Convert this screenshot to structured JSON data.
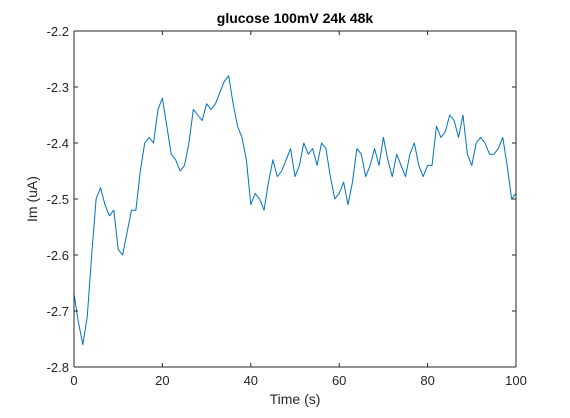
{
  "chart_data": {
    "type": "line",
    "title": "glucose 100mV 24k 48k",
    "xlabel": "Time (s)",
    "ylabel": "Im (uA)",
    "xlim": [
      0,
      100
    ],
    "ylim": [
      -2.8,
      -2.2
    ],
    "xticks": [
      0,
      20,
      40,
      60,
      80,
      100
    ],
    "yticks": [
      -2.8,
      -2.7,
      -2.6,
      -2.5,
      -2.4,
      -2.3,
      -2.2
    ],
    "xtick_labels": [
      "0",
      "20",
      "40",
      "60",
      "80",
      "100"
    ],
    "ytick_labels": [
      "-2.8",
      "-2.7",
      "-2.6",
      "-2.5",
      "-2.4",
      "-2.3",
      "-2.2"
    ],
    "grid": false,
    "line_color": "#0072BD",
    "axis_color": "#262626",
    "series": [
      {
        "x": [
          0,
          1,
          2,
          3,
          4,
          5,
          6,
          7,
          8,
          9,
          10,
          11,
          12,
          13,
          14,
          15,
          16,
          17,
          18,
          19,
          20,
          21,
          22,
          23,
          24,
          25,
          26,
          27,
          28,
          29,
          30,
          31,
          32,
          33,
          34,
          35,
          36,
          37,
          38,
          39,
          40,
          41,
          42,
          43,
          44,
          45,
          46,
          47,
          48,
          49,
          50,
          51,
          52,
          53,
          54,
          55,
          56,
          57,
          58,
          59,
          60,
          61,
          62,
          63,
          64,
          65,
          66,
          67,
          68,
          69,
          70,
          71,
          72,
          73,
          74,
          75,
          76,
          77,
          78,
          79,
          80,
          81,
          82,
          83,
          84,
          85,
          86,
          87,
          88,
          89,
          90,
          91,
          92,
          93,
          94,
          95,
          96,
          97,
          98,
          99,
          100
        ],
        "y": [
          -2.67,
          -2.72,
          -2.76,
          -2.71,
          -2.6,
          -2.5,
          -2.48,
          -2.51,
          -2.53,
          -2.52,
          -2.59,
          -2.6,
          -2.56,
          -2.52,
          -2.52,
          -2.45,
          -2.4,
          -2.39,
          -2.4,
          -2.34,
          -2.32,
          -2.37,
          -2.42,
          -2.43,
          -2.45,
          -2.44,
          -2.4,
          -2.34,
          -2.35,
          -2.36,
          -2.33,
          -2.34,
          -2.33,
          -2.31,
          -2.29,
          -2.28,
          -2.33,
          -2.37,
          -2.39,
          -2.43,
          -2.51,
          -2.49,
          -2.5,
          -2.52,
          -2.47,
          -2.43,
          -2.46,
          -2.45,
          -2.43,
          -2.41,
          -2.46,
          -2.44,
          -2.4,
          -2.42,
          -2.41,
          -2.44,
          -2.4,
          -2.41,
          -2.46,
          -2.5,
          -2.49,
          -2.47,
          -2.51,
          -2.47,
          -2.41,
          -2.42,
          -2.46,
          -2.44,
          -2.41,
          -2.44,
          -2.39,
          -2.43,
          -2.46,
          -2.42,
          -2.44,
          -2.46,
          -2.42,
          -2.4,
          -2.44,
          -2.46,
          -2.44,
          -2.44,
          -2.37,
          -2.39,
          -2.38,
          -2.35,
          -2.36,
          -2.39,
          -2.35,
          -2.42,
          -2.44,
          -2.4,
          -2.39,
          -2.4,
          -2.42,
          -2.42,
          -2.41,
          -2.39,
          -2.44,
          -2.5,
          -2.49
        ]
      }
    ]
  }
}
